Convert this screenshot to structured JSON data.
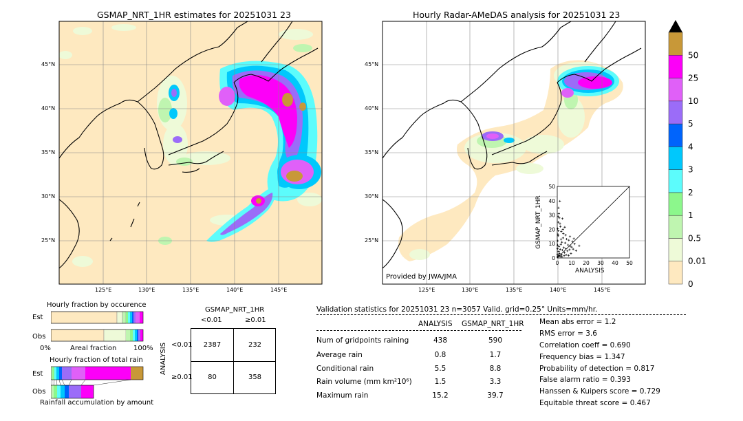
{
  "left_map": {
    "title": "GSMAP_NRT_1HR estimates for 20251031 23",
    "lat_ticks": [
      "45°N",
      "40°N",
      "35°N",
      "30°N",
      "25°N"
    ],
    "lon_ticks": [
      "125°E",
      "130°E",
      "135°E",
      "140°E",
      "145°E"
    ]
  },
  "right_map": {
    "title": "Hourly Radar-AMeDAS analysis for 20251031 23",
    "lat_ticks": [
      "45°N",
      "40°N",
      "35°N",
      "30°N",
      "25°N"
    ],
    "lon_ticks": [
      "125°E",
      "130°E",
      "135°E",
      "140°E",
      "145°E"
    ],
    "credit": "Provided by JWA/JMA"
  },
  "colorbar": {
    "labels": [
      "0",
      "0.01",
      "0.5",
      "1",
      "2",
      "3",
      "4",
      "5",
      "10",
      "25",
      "50"
    ],
    "colors": [
      "#fee9c0",
      "#eefad8",
      "#bff5b0",
      "#8cf78c",
      "#5cfcfc",
      "#00c8fc",
      "#0064fc",
      "#9b6cf8",
      "#e060f8",
      "#fc00f8",
      "#c89838"
    ]
  },
  "scatter": {
    "xlabel": "ANALYSIS",
    "ylabel": "GSMAP_NRT_1HR",
    "ticks": [
      "0",
      "10",
      "20",
      "30",
      "40",
      "50"
    ]
  },
  "fraction_occurrence": {
    "title": "Hourly fraction by occurence",
    "row_est": "Est",
    "row_obs": "Obs",
    "axis_left": "0%",
    "axis_mid": "Areal fraction",
    "axis_right": "100%"
  },
  "fraction_total": {
    "title": "Hourly fraction of total rain",
    "row_est": "Est",
    "row_obs": "Obs",
    "footer": "Rainfall accumulation by amount"
  },
  "contingency": {
    "title": "GSMAP_NRT_1HR",
    "col_lt": "<0.01",
    "col_ge": "≥0.01",
    "row_axis": "ANALYSIS",
    "row_lt": "<0.01",
    "row_ge": "≥0.01",
    "cells": [
      "2387",
      "232",
      "80",
      "358"
    ]
  },
  "validation": {
    "header": "Validation statistics for 20251031 23  n=3057 Valid. grid=0.25° Units=mm/hr.",
    "col_analysis": "ANALYSIS",
    "col_gsmap": "GSMAP_NRT_1HR",
    "rows": [
      {
        "label": "Num of gridpoints raining",
        "analysis": "438",
        "gsmap": "590"
      },
      {
        "label": "Average rain",
        "analysis": "0.8",
        "gsmap": "1.7"
      },
      {
        "label": "Conditional rain",
        "analysis": "5.5",
        "gsmap": "8.8"
      },
      {
        "label": "Rain volume (mm km²10⁶)",
        "analysis": "1.5",
        "gsmap": "3.3"
      },
      {
        "label": "Maximum rain",
        "analysis": "15.2",
        "gsmap": "39.7"
      }
    ],
    "scores": [
      "Mean abs error =    1.2",
      "RMS error =    3.6",
      "Correlation coeff =  0.690",
      "Frequency bias =  1.347",
      "Probability of detection =  0.817",
      "False alarm ratio =  0.393",
      "Hanssen & Kuipers score =  0.729",
      "Equitable threat score =  0.467"
    ]
  },
  "chart_data": {
    "type": "scatter",
    "title": "",
    "xlabel": "ANALYSIS",
    "ylabel": "GSMAP_NRT_1HR",
    "xlim": [
      0,
      50
    ],
    "ylim": [
      0,
      50
    ],
    "points": [
      [
        0.2,
        0.5
      ],
      [
        0.5,
        1.2
      ],
      [
        0.8,
        2.0
      ],
      [
        1.0,
        4.5
      ],
      [
        1.2,
        8.0
      ],
      [
        0.4,
        12.0
      ],
      [
        0.6,
        15.5
      ],
      [
        1.5,
        3.2
      ],
      [
        2.0,
        6.0
      ],
      [
        2.5,
        9.5
      ],
      [
        3.0,
        2.1
      ],
      [
        3.2,
        11.0
      ],
      [
        3.5,
        5.5
      ],
      [
        4.0,
        14.0
      ],
      [
        4.5,
        7.2
      ],
      [
        5.0,
        3.8
      ],
      [
        5.5,
        10.5
      ],
      [
        6.0,
        6.4
      ],
      [
        6.5,
        13.2
      ],
      [
        7.0,
        4.9
      ],
      [
        7.5,
        9.1
      ],
      [
        8.0,
        12.4
      ],
      [
        8.5,
        5.8
      ],
      [
        9.0,
        8.2
      ],
      [
        9.5,
        3.1
      ],
      [
        10.0,
        7.6
      ],
      [
        11.0,
        6.2
      ],
      [
        12.0,
        9.8
      ],
      [
        13.0,
        5.1
      ],
      [
        15.2,
        8.5
      ],
      [
        0.3,
        20.5
      ],
      [
        0.7,
        25.0
      ],
      [
        1.1,
        31.0
      ],
      [
        1.8,
        39.7
      ],
      [
        2.2,
        22.0
      ],
      [
        2.8,
        18.5
      ],
      [
        3.6,
        27.5
      ],
      [
        4.2,
        17.0
      ],
      [
        0.9,
        35.0
      ],
      [
        1.4,
        28.0
      ],
      [
        0.1,
        2.5
      ],
      [
        0.2,
        6.5
      ],
      [
        0.3,
        9.0
      ],
      [
        0.5,
        16.5
      ],
      [
        0.8,
        19.0
      ],
      [
        1.6,
        1.5
      ],
      [
        2.4,
        1.0
      ],
      [
        3.3,
        0.8
      ],
      [
        4.8,
        1.6
      ],
      [
        6.2,
        2.2
      ],
      [
        7.8,
        1.8
      ],
      [
        5.8,
        16.0
      ],
      [
        8.8,
        15.0
      ],
      [
        10.5,
        11.5
      ],
      [
        11.5,
        13.5
      ],
      [
        2.6,
        13.0
      ],
      [
        3.9,
        20.0
      ],
      [
        5.2,
        21.5
      ],
      [
        1.9,
        24.0
      ],
      [
        0.6,
        29.0
      ]
    ],
    "diagonal": true
  }
}
